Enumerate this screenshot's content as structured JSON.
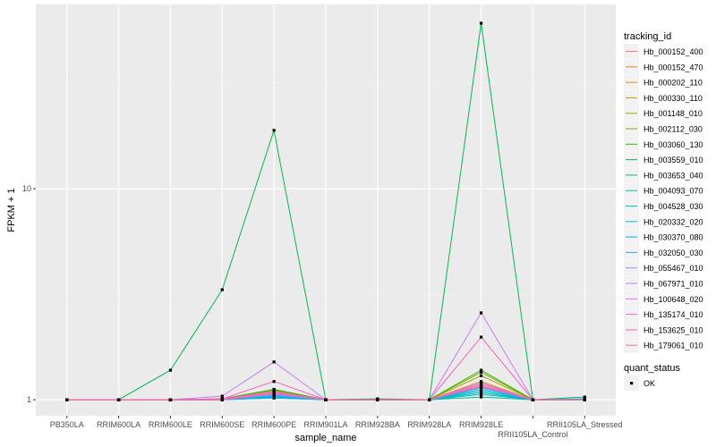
{
  "chart_data": {
    "type": "line",
    "title": "",
    "xlabel": "sample_name",
    "ylabel": "FPKM + 1",
    "y_scale": "log10",
    "ylim": [
      0.84,
      74.6
    ],
    "y_ticks": [
      1,
      10
    ],
    "y_tick_labels": [
      "1",
      "10"
    ],
    "grid": true,
    "legend_position": "right",
    "categories": [
      "PB350LA",
      "RRIM600LA",
      "RRIM600LE",
      "RRIM600SE",
      "RRIM600PE",
      "RRIM901LA",
      "RRIM928BA",
      "RRIM928LA",
      "RRIM928LE",
      "RRII105LA_Control",
      "RRII105LA_Stressed"
    ],
    "color_legend_title": "tracking_id",
    "shape_legend_title": "quant_status",
    "shape_legend_items": [
      "OK"
    ],
    "series": [
      {
        "name": "Hb_000152_400",
        "color": "#F8766D",
        "values": [
          1,
          1,
          1,
          1,
          1.06,
          1,
          1,
          1,
          1.15,
          1,
          1
        ]
      },
      {
        "name": "Hb_000152_470",
        "color": "#EA8331",
        "values": [
          1,
          1,
          1,
          1,
          1.09,
          1,
          1,
          1,
          1.2,
          1,
          1
        ]
      },
      {
        "name": "Hb_000202_110",
        "color": "#D89000",
        "values": [
          1,
          1,
          1,
          1,
          1.08,
          1,
          1,
          1,
          1.22,
          1,
          1
        ]
      },
      {
        "name": "Hb_000330_110",
        "color": "#C09B00",
        "values": [
          1,
          1,
          1,
          1,
          1.07,
          1,
          1,
          1,
          1.18,
          1,
          1
        ]
      },
      {
        "name": "Hb_001148_010",
        "color": "#A3A500",
        "values": [
          1,
          1,
          1,
          1,
          1.1,
          1,
          1,
          1,
          1.3,
          1,
          1
        ]
      },
      {
        "name": "Hb_002112_030",
        "color": "#7CAE00",
        "values": [
          1,
          1,
          1,
          1.01,
          1.11,
          1,
          1,
          1,
          1.35,
          1,
          1
        ]
      },
      {
        "name": "Hb_003060_130",
        "color": "#39B600",
        "values": [
          1,
          1,
          1,
          1.01,
          1.12,
          1,
          1,
          1,
          1.38,
          1,
          1
        ]
      },
      {
        "name": "Hb_003559_010",
        "color": "#00BB4E",
        "values": [
          1,
          1,
          1.38,
          3.32,
          18.9,
          1,
          1.01,
          1,
          60.8,
          1,
          1.03
        ]
      },
      {
        "name": "Hb_003653_040",
        "color": "#00BF7D",
        "values": [
          1,
          1,
          1,
          1,
          1.02,
          1,
          1,
          1,
          1.03,
          1,
          1
        ]
      },
      {
        "name": "Hb_004093_070",
        "color": "#00C1A3",
        "values": [
          1,
          1,
          1,
          1,
          1.03,
          1,
          1,
          1,
          1.08,
          1,
          1
        ]
      },
      {
        "name": "Hb_004528_030",
        "color": "#00BFC4",
        "values": [
          1,
          1,
          1,
          1,
          1.04,
          1,
          1,
          1,
          1.1,
          1,
          1
        ]
      },
      {
        "name": "Hb_020332_020",
        "color": "#00BAE0",
        "values": [
          1,
          1,
          1,
          1,
          1.03,
          1,
          1,
          1,
          1.12,
          1,
          1.01
        ]
      },
      {
        "name": "Hb_030370_080",
        "color": "#00B0F6",
        "values": [
          1,
          1,
          1,
          1,
          1.02,
          1,
          1,
          1,
          1.06,
          1,
          1
        ]
      },
      {
        "name": "Hb_032050_030",
        "color": "#35A2FF",
        "values": [
          1,
          1,
          1,
          1,
          1.05,
          1,
          1,
          1,
          1.14,
          1,
          1
        ]
      },
      {
        "name": "Hb_055467_010",
        "color": "#9590FF",
        "values": [
          1,
          1,
          1,
          1,
          1.06,
          1,
          1,
          1,
          1.16,
          1,
          1
        ]
      },
      {
        "name": "Hb_067971_010",
        "color": "#C77CFF",
        "values": [
          1,
          1,
          1,
          1.04,
          1.51,
          1,
          1,
          1,
          2.58,
          1,
          1
        ]
      },
      {
        "name": "Hb_100648_020",
        "color": "#E76BF3",
        "values": [
          1,
          1,
          1,
          1.01,
          1.08,
          1,
          1,
          1,
          1.2,
          1,
          1
        ]
      },
      {
        "name": "Hb_135174_010",
        "color": "#FA62DB",
        "values": [
          1,
          1,
          1,
          1.01,
          1.09,
          1,
          1,
          1,
          1.18,
          1,
          1
        ]
      },
      {
        "name": "Hb_153625_010",
        "color": "#FF62BC",
        "values": [
          1,
          1,
          1,
          1.01,
          1.22,
          1,
          1,
          1,
          1.98,
          1,
          1
        ]
      },
      {
        "name": "Hb_179061_010",
        "color": "#FF6C91",
        "values": [
          1,
          1,
          1,
          1,
          1.07,
          1,
          1,
          1,
          1.16,
          1,
          1
        ]
      }
    ]
  }
}
